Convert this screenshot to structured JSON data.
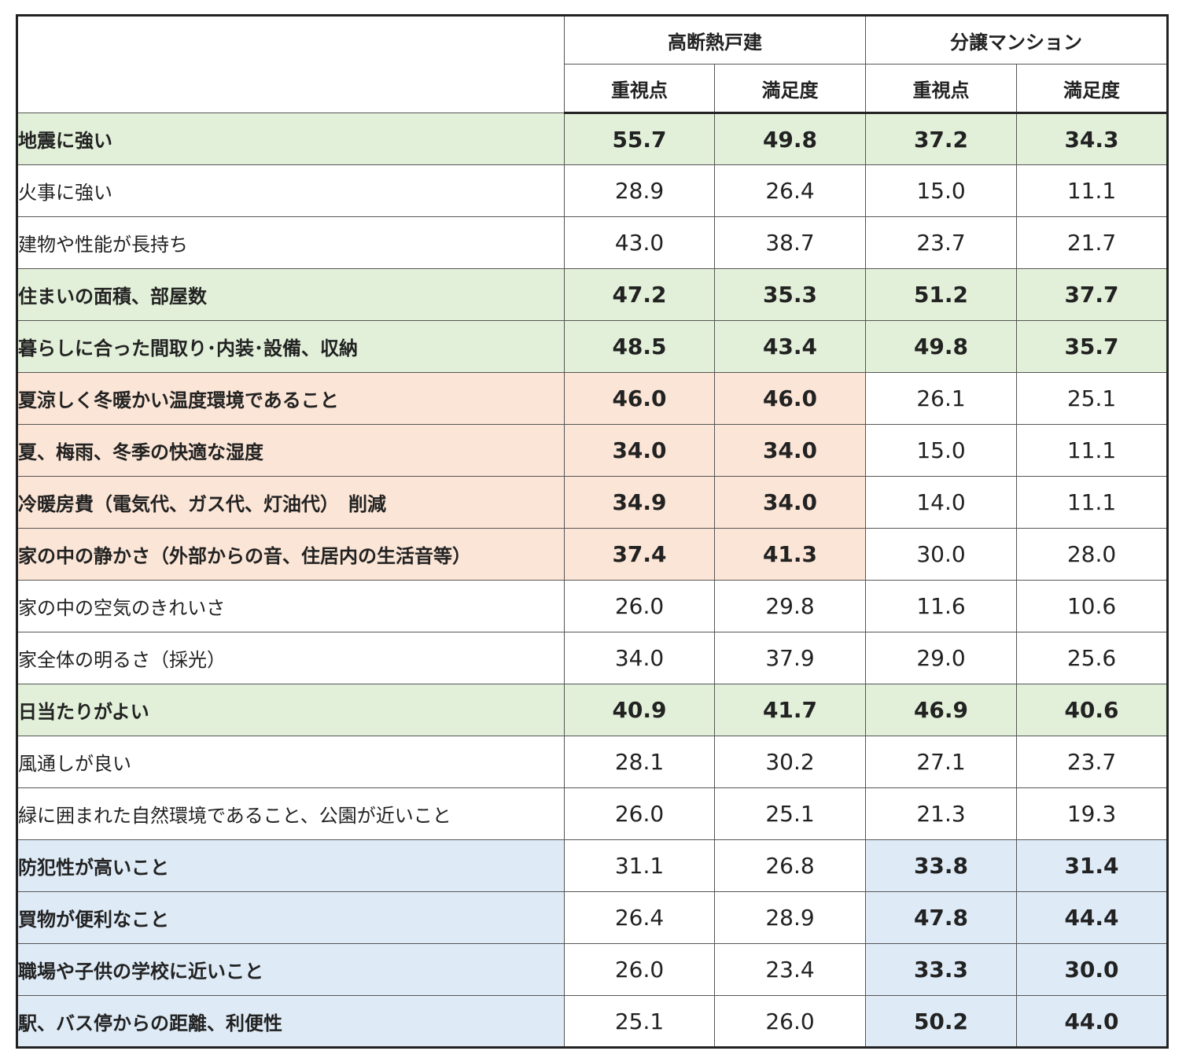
{
  "header": {
    "group1": "高断熱戸建",
    "group2": "分譲マンション",
    "col_importance": "重視点",
    "col_satisfaction": "満足度"
  },
  "colors": {
    "green": "#e2f0d9",
    "orange": "#fbe5d6",
    "blue": "#deebf7",
    "white": "#ffffff"
  },
  "rows": [
    {
      "label": "地震に強い",
      "values": [
        "55.7",
        "49.8",
        "37.2",
        "34.3"
      ],
      "label_bg": "green",
      "label_bold": true,
      "cells_bg": [
        "green",
        "green",
        "green",
        "green"
      ],
      "cells_bold": [
        true,
        true,
        true,
        true
      ]
    },
    {
      "label": "火事に強い",
      "values": [
        "28.9",
        "26.4",
        "15.0",
        "11.1"
      ],
      "label_bg": "white",
      "label_bold": false,
      "cells_bg": [
        "white",
        "white",
        "white",
        "white"
      ],
      "cells_bold": [
        false,
        false,
        false,
        false
      ]
    },
    {
      "label": "建物や性能が長持ち",
      "values": [
        "43.0",
        "38.7",
        "23.7",
        "21.7"
      ],
      "label_bg": "white",
      "label_bold": false,
      "cells_bg": [
        "white",
        "white",
        "white",
        "white"
      ],
      "cells_bold": [
        false,
        false,
        false,
        false
      ]
    },
    {
      "label": "住まいの面積、部屋数",
      "values": [
        "47.2",
        "35.3",
        "51.2",
        "37.7"
      ],
      "label_bg": "green",
      "label_bold": true,
      "cells_bg": [
        "green",
        "green",
        "green",
        "green"
      ],
      "cells_bold": [
        true,
        true,
        true,
        true
      ]
    },
    {
      "label": "暮らしに合った間取り･内装･設備、収納",
      "values": [
        "48.5",
        "43.4",
        "49.8",
        "35.7"
      ],
      "label_bg": "green",
      "label_bold": true,
      "cells_bg": [
        "green",
        "green",
        "green",
        "green"
      ],
      "cells_bold": [
        true,
        true,
        true,
        true
      ]
    },
    {
      "label": "夏涼しく冬暖かい温度環境であること",
      "values": [
        "46.0",
        "46.0",
        "26.1",
        "25.1"
      ],
      "label_bg": "orange",
      "label_bold": true,
      "cells_bg": [
        "orange",
        "orange",
        "white",
        "white"
      ],
      "cells_bold": [
        true,
        true,
        false,
        false
      ]
    },
    {
      "label": "夏、梅雨、冬季の快適な湿度",
      "values": [
        "34.0",
        "34.0",
        "15.0",
        "11.1"
      ],
      "label_bg": "orange",
      "label_bold": true,
      "cells_bg": [
        "orange",
        "orange",
        "white",
        "white"
      ],
      "cells_bold": [
        true,
        true,
        false,
        false
      ]
    },
    {
      "label": "冷暖房費（電気代、ガス代、灯油代）　削減",
      "values": [
        "34.9",
        "34.0",
        "14.0",
        "11.1"
      ],
      "label_bg": "orange",
      "label_bold": true,
      "cells_bg": [
        "orange",
        "orange",
        "white",
        "white"
      ],
      "cells_bold": [
        true,
        true,
        false,
        false
      ]
    },
    {
      "label": "家の中の静かさ（外部からの音、住居内の生活音等）",
      "values": [
        "37.4",
        "41.3",
        "30.0",
        "28.0"
      ],
      "label_bg": "orange",
      "label_bold": true,
      "cells_bg": [
        "orange",
        "orange",
        "white",
        "white"
      ],
      "cells_bold": [
        true,
        true,
        false,
        false
      ]
    },
    {
      "label": "家の中の空気のきれいさ",
      "values": [
        "26.0",
        "29.8",
        "11.6",
        "10.6"
      ],
      "label_bg": "white",
      "label_bold": false,
      "cells_bg": [
        "white",
        "white",
        "white",
        "white"
      ],
      "cells_bold": [
        false,
        false,
        false,
        false
      ]
    },
    {
      "label": "家全体の明るさ（採光）",
      "values": [
        "34.0",
        "37.9",
        "29.0",
        "25.6"
      ],
      "label_bg": "white",
      "label_bold": false,
      "cells_bg": [
        "white",
        "white",
        "white",
        "white"
      ],
      "cells_bold": [
        false,
        false,
        false,
        false
      ]
    },
    {
      "label": "日当たりがよい",
      "values": [
        "40.9",
        "41.7",
        "46.9",
        "40.6"
      ],
      "label_bg": "green",
      "label_bold": true,
      "cells_bg": [
        "green",
        "green",
        "green",
        "green"
      ],
      "cells_bold": [
        true,
        true,
        true,
        true
      ]
    },
    {
      "label": "風通しが良い",
      "values": [
        "28.1",
        "30.2",
        "27.1",
        "23.7"
      ],
      "label_bg": "white",
      "label_bold": false,
      "cells_bg": [
        "white",
        "white",
        "white",
        "white"
      ],
      "cells_bold": [
        false,
        false,
        false,
        false
      ]
    },
    {
      "label": "緑に囲まれた自然環境であること、公園が近いこと",
      "values": [
        "26.0",
        "25.1",
        "21.3",
        "19.3"
      ],
      "label_bg": "white",
      "label_bold": false,
      "cells_bg": [
        "white",
        "white",
        "white",
        "white"
      ],
      "cells_bold": [
        false,
        false,
        false,
        false
      ]
    },
    {
      "label": "防犯性が高いこと",
      "values": [
        "31.1",
        "26.8",
        "33.8",
        "31.4"
      ],
      "label_bg": "blue",
      "label_bold": true,
      "cells_bg": [
        "white",
        "white",
        "blue",
        "blue"
      ],
      "cells_bold": [
        false,
        false,
        true,
        true
      ]
    },
    {
      "label": "買物が便利なこと",
      "values": [
        "26.4",
        "28.9",
        "47.8",
        "44.4"
      ],
      "label_bg": "blue",
      "label_bold": true,
      "cells_bg": [
        "white",
        "white",
        "blue",
        "blue"
      ],
      "cells_bold": [
        false,
        false,
        true,
        true
      ]
    },
    {
      "label": "職場や子供の学校に近いこと",
      "values": [
        "26.0",
        "23.4",
        "33.3",
        "30.0"
      ],
      "label_bg": "blue",
      "label_bold": true,
      "cells_bg": [
        "white",
        "white",
        "blue",
        "blue"
      ],
      "cells_bold": [
        false,
        false,
        true,
        true
      ]
    },
    {
      "label": "駅、バス停からの距離、利便性",
      "values": [
        "25.1",
        "26.0",
        "50.2",
        "44.0"
      ],
      "label_bg": "blue",
      "label_bold": true,
      "cells_bg": [
        "white",
        "white",
        "blue",
        "blue"
      ],
      "cells_bold": [
        false,
        false,
        true,
        true
      ]
    }
  ]
}
